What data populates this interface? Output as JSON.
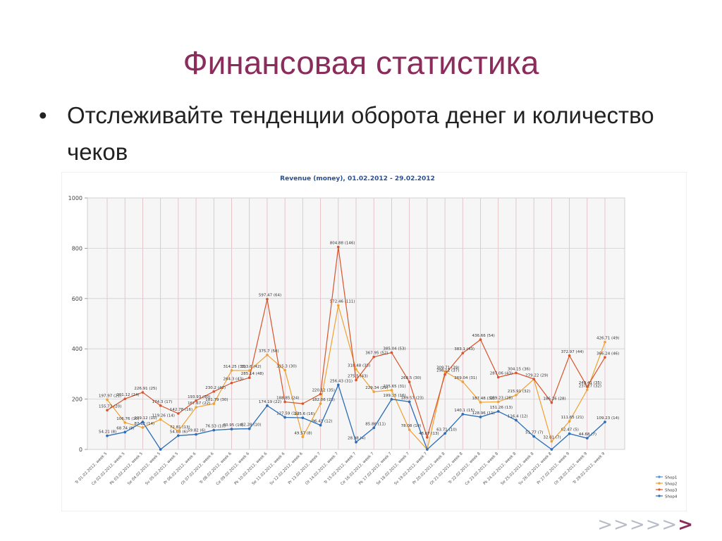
{
  "slide": {
    "title": "Финансовая статистика",
    "bullet": "•",
    "bullet_text": "Отслеживайте тенденции оборота денег и количество чеков",
    "nav": ">>>>>",
    "nav_last": ">"
  },
  "colors": {
    "title": "#8b2d5c",
    "Shop1": "#4a90d9",
    "Shop2": "#f0a030",
    "Shop3": "#d9532b",
    "Shop4": "#2f6db5"
  },
  "chart_data": {
    "type": "line",
    "title": "Revenue (money), 01.02.2012 - 29.02.2012",
    "ylim": [
      0,
      1000
    ],
    "yticks": [
      "0",
      "200",
      "400",
      "600",
      "800",
      "1000"
    ],
    "grid": true,
    "legend_position": "bottom-right",
    "categories": [
      "Tr 01.02.2012, week 5",
      "Ce 02.02.2012, week 5",
      "Pk 03.02.2012, week 5",
      "Se 04.02.2012, week 5",
      "Sv 05.02.2012, week 5",
      "Pr 06.02.2012, week 6",
      "Ot 07.02.2012, week 6",
      "Tr 08.02.2012, week 6",
      "Ce 09.02.2012, week 6",
      "Pk 10.02.2012, week 6",
      "Se 11.02.2012, week 6",
      "Sv 12.02.2012, week 6",
      "Pr 13.02.2012, week 7",
      "Ot 14.02.2012, week 7",
      "Tr 15.02.2012, week 7",
      "Ce 16.02.2012, week 7",
      "Pk 17.02.2012, week 7",
      "Se 18.02.2012, week 7",
      "Sv 19.02.2012, week 7",
      "Pr 20.02.2012, week 8",
      "Ot 21.02.2012, week 8",
      "Tr 22.02.2012, week 8",
      "Ce 23.02.2012, week 8",
      "Pk 24.02.2012, week 8",
      "Se 25.02.2012, week 8",
      "Sv 26.02.2012, week 8",
      "Pr 27.02.2012, week 9",
      "Ot 28.02.2012, week 9",
      "Tr 29.02.2012, week 9"
    ],
    "series": [
      {
        "name": "Shop1",
        "values": [
          54.21,
          68.74,
          109.12,
          0,
          54.83,
          59.82,
          76.53,
          80.95,
          82.28,
          174.19,
          127.59,
          125.6,
          96.41,
          256.43,
          28.98,
          85.86,
          199.35,
          189.57,
          0,
          63.71,
          140.1,
          128.96,
          151.26,
          116.4,
          51.77,
          0,
          62.47,
          44.68,
          109.23
        ],
        "labels": [
          "54.21 (8)",
          "68.74 (8)",
          "109.12 (10)",
          "",
          "54.83 (6)",
          "59.82 (6)",
          "76.53 (10)",
          "80.95 (16)",
          "82.28 (10)",
          "174.19 (22)",
          "127.59 (16)",
          "125.6 (16)",
          "96.41 (12)",
          "256.43 (31)",
          "28.98 (4)",
          "85.86 (11)",
          "199.35 (16)",
          "189.57 (23)",
          "",
          "63.71 (10)",
          "140.1 (15)",
          "128.96 (11)",
          "151.26 (13)",
          "116.4 (12)",
          "51.77 (7)",
          "",
          "62.47 (5)",
          "44.68 (7)",
          "109.23 (14)"
        ]
      },
      {
        "name": "Shop2",
        "values": [
          197.97,
          106.76,
          87.12,
          119.26,
          72.81,
          167.67,
          181.79,
          314.25,
          313.6,
          375.7,
          315.3,
          49.57,
          182.06,
          572.46,
          318.48,
          229.34,
          235.65,
          78.08,
          0,
          309.71,
          269.04,
          187.48,
          189.23,
          215.91,
          279.22,
          32.01,
          111.65,
          237.27,
          426.71
        ],
        "labels": [
          "197.97 (21)",
          "106.76 (10)",
          "87.12 (14)",
          "119.26 (14)",
          "72.81 (13)",
          "167.67 (22)",
          "181.79 (30)",
          "314.25 (32)",
          "313.6 (42)",
          "375.7 (50)",
          "315.3 (30)",
          "49.57 (8)",
          "182.06 (23)",
          "572.46 (111)",
          "318.48 (35)",
          "229.34 (29)",
          "235.65 (31)",
          "78.08 (10)",
          "",
          "309.71 (39)",
          "269.04 (31)",
          "187.48 (32)",
          "189.23 (28)",
          "215.91 (32)",
          "279.22 (29)",
          "32.01 (7)",
          "111.65 (21)",
          "237.27 (32)",
          "426.71 (49)"
        ]
      },
      {
        "name": "Shop3",
        "values": [
          155.73,
          201.12,
          226.91,
          174.3,
          142.78,
          193.93,
          230.2,
          264.3,
          285.14,
          597.47,
          188.85,
          182.0,
          220.12,
          804.88,
          275.5,
          367.95,
          385.04,
          268.5,
          48.07,
          298.12,
          383.1,
          436.66,
          287.06,
          304.15,
          280.0,
          186.16,
          372.97,
          249.41,
          366.24
        ],
        "labels": [
          "155.73 (20)",
          "201.12 (24)",
          "226.91 (25)",
          "174.3 (17)",
          "142.78 (16)",
          "193.93 (30)",
          "230.2 (42)",
          "264.3 (43)",
          "285.14 (48)",
          "597.47 (64)",
          "188.85 (24)",
          "",
          "220.12 (35)",
          "804.88 (146)",
          "275.5 (43)",
          "367.95 (52)",
          "385.04 (53)",
          "268.5 (30)",
          "48.07 (13)",
          "298.12 (37)",
          "383.1 (43)",
          "436.66 (54)",
          "287.06 (43)",
          "304.15 (36)",
          "",
          "186.16 (28)",
          "372.97 (44)",
          "249.41 (35)",
          "366.24 (46)"
        ]
      },
      {
        "name": "Shop4",
        "values": [
          54.21,
          68.74,
          109.12,
          0,
          54.83,
          59.82,
          76.53,
          80.95,
          82.28,
          174.19,
          127.59,
          125.6,
          96.41,
          256.43,
          28.98,
          85.86,
          199.35,
          189.57,
          0,
          63.71,
          140.1,
          128.96,
          151.26,
          116.4,
          51.77,
          0,
          62.47,
          44.68,
          109.23
        ],
        "labels": []
      }
    ],
    "extra_labels": [
      "186.72 (31)",
      "238.23 (35)",
      "318.58 (30)"
    ],
    "legend": [
      "Shop1",
      "Shop2",
      "Shop3",
      "Shop4"
    ]
  }
}
